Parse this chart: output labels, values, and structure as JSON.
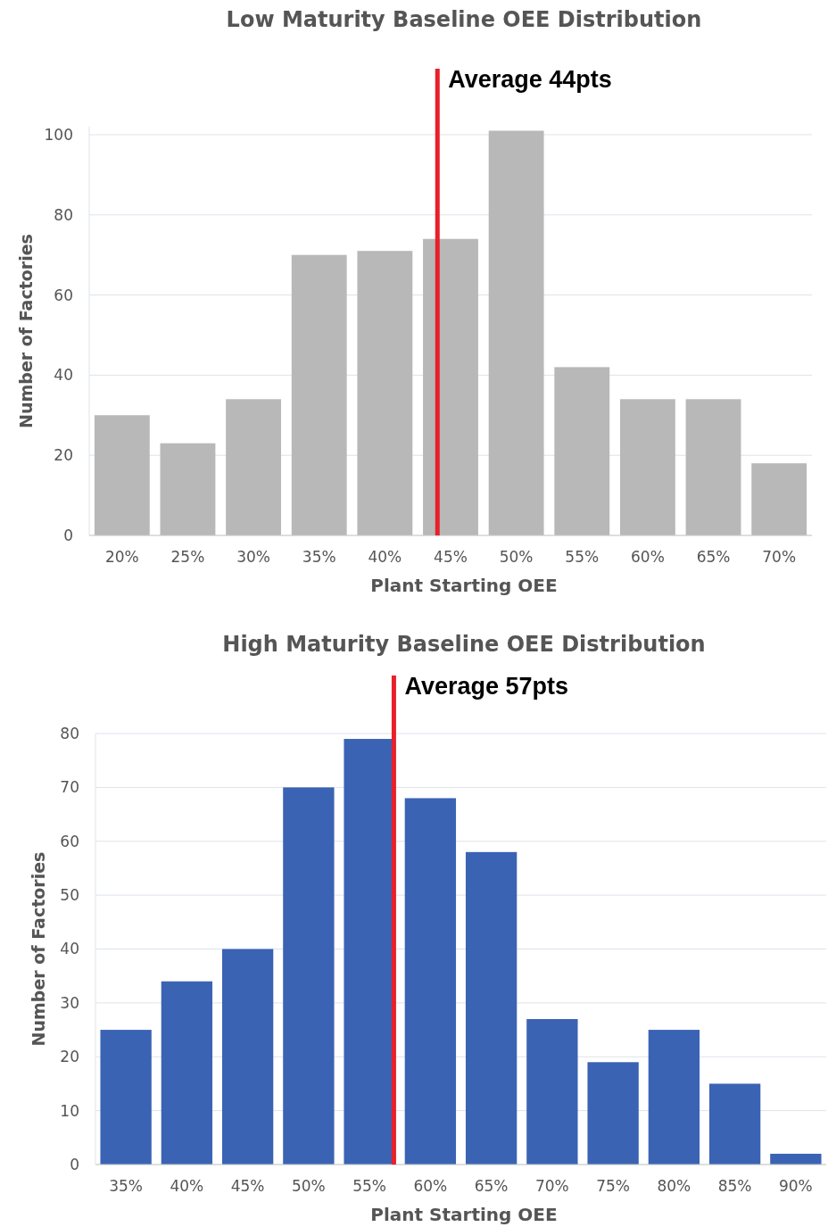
{
  "chart_data": [
    {
      "type": "bar",
      "title": "Low Maturity Baseline OEE Distribution",
      "xlabel": "Plant Starting OEE",
      "ylabel": "Number of Factories",
      "x": [
        20,
        25,
        30,
        35,
        40,
        45,
        50,
        55,
        60,
        65,
        70
      ],
      "series": [
        {
          "color": "#b8b8b8",
          "values": [
            30,
            23,
            34,
            70,
            71,
            74,
            101,
            42,
            34,
            34,
            18
          ]
        }
      ],
      "xlim": [
        17.5,
        72.5
      ],
      "xticks": [
        {
          "value": 20,
          "label": "20%"
        },
        {
          "value": 25,
          "label": "25%"
        },
        {
          "value": 30,
          "label": "30%"
        },
        {
          "value": 35,
          "label": "35%"
        },
        {
          "value": 40,
          "label": "40%"
        },
        {
          "value": 45,
          "label": "45%"
        },
        {
          "value": 50,
          "label": "50%"
        },
        {
          "value": 55,
          "label": "55%"
        },
        {
          "value": 60,
          "label": "60%"
        },
        {
          "value": 65,
          "label": "65%"
        },
        {
          "value": 70,
          "label": "70%"
        }
      ],
      "ylim": [
        0,
        102
      ],
      "yticks": [
        0,
        20,
        40,
        60,
        80,
        100
      ],
      "grid": "y",
      "ref_lines": [
        {
          "axis": "x",
          "value": 44,
          "label": "Average 44pts",
          "color": "#e8202a"
        }
      ]
    },
    {
      "type": "bar",
      "title": "High Maturity Baseline OEE Distribution",
      "xlabel": "Plant Starting OEE",
      "ylabel": "Number of Factories",
      "x": [
        35,
        40,
        45,
        50,
        55,
        60,
        65,
        70,
        75,
        80,
        85,
        90
      ],
      "series": [
        {
          "color": "#3a63b4",
          "values": [
            25,
            34,
            40,
            70,
            79,
            68,
            58,
            27,
            19,
            25,
            15,
            2
          ]
        }
      ],
      "xlim": [
        32.5,
        92.5
      ],
      "xticks": [
        {
          "value": 35,
          "label": "35%"
        },
        {
          "value": 40,
          "label": "40%"
        },
        {
          "value": 45,
          "label": "45%"
        },
        {
          "value": 50,
          "label": "50%"
        },
        {
          "value": 55,
          "label": "55%"
        },
        {
          "value": 60,
          "label": "60%"
        },
        {
          "value": 65,
          "label": "65%"
        },
        {
          "value": 70,
          "label": "70%"
        },
        {
          "value": 75,
          "label": "75%"
        },
        {
          "value": 80,
          "label": "80%"
        },
        {
          "value": 85,
          "label": "85%"
        },
        {
          "value": 90,
          "label": "90%"
        }
      ],
      "ylim": [
        0,
        80
      ],
      "yticks": [
        0,
        10,
        20,
        30,
        40,
        50,
        60,
        70,
        80
      ],
      "grid": "y",
      "ref_lines": [
        {
          "axis": "x",
          "value": 57,
          "label": "Average 57pts",
          "color": "#e8202a"
        }
      ]
    }
  ]
}
